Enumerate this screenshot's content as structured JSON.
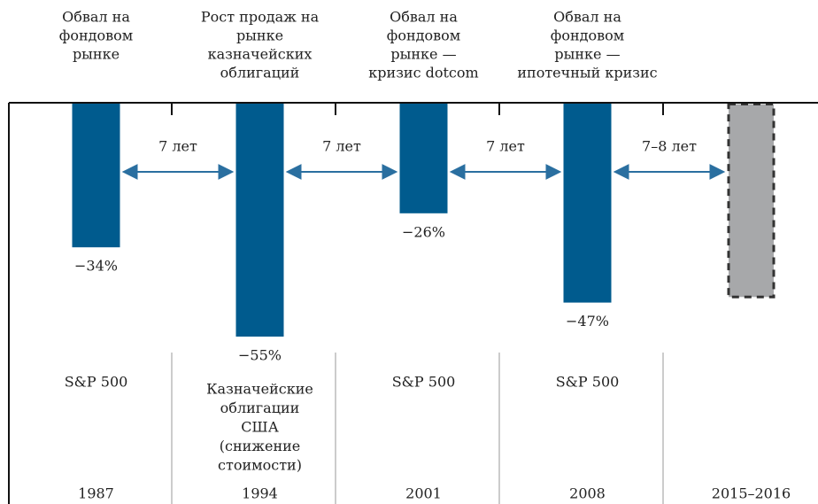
{
  "chart_data": {
    "type": "bar",
    "categories": [
      "1987",
      "1994",
      "2001",
      "2008",
      "2015–2016"
    ],
    "values": [
      -34,
      -55,
      -26,
      -47,
      -46
    ],
    "value_labels": [
      "−34%",
      "−55%",
      "−26%",
      "−47%",
      null
    ],
    "colors": [
      "#005b8e",
      "#005b8e",
      "#005b8e",
      "#005b8e",
      "#a7a8aa"
    ],
    "dashed": [
      false,
      false,
      false,
      false,
      true
    ],
    "ylim": [
      -60,
      0
    ],
    "events": [
      [
        "Обвал на",
        "фондовом",
        "рынке"
      ],
      [
        "Рост продаж на",
        "рынке",
        "казначейских",
        "облигаций"
      ],
      [
        "Обвал на",
        "фондовом",
        "рынке —",
        "кризис dotcom"
      ],
      [
        "Обвал на",
        "фондовом",
        "рынке —",
        "ипотечный кризис"
      ],
      null
    ],
    "indices": [
      [
        "S&P 500"
      ],
      [
        "Казначейские",
        "облигации",
        "США",
        "(снижение",
        "стоимости)"
      ],
      [
        "S&P 500"
      ],
      [
        "S&P 500"
      ],
      null
    ],
    "intervals": [
      "7 лет",
      "7 лет",
      "7 лет",
      "7–8 лет"
    ],
    "arrow_color": "#2a6fa0"
  }
}
